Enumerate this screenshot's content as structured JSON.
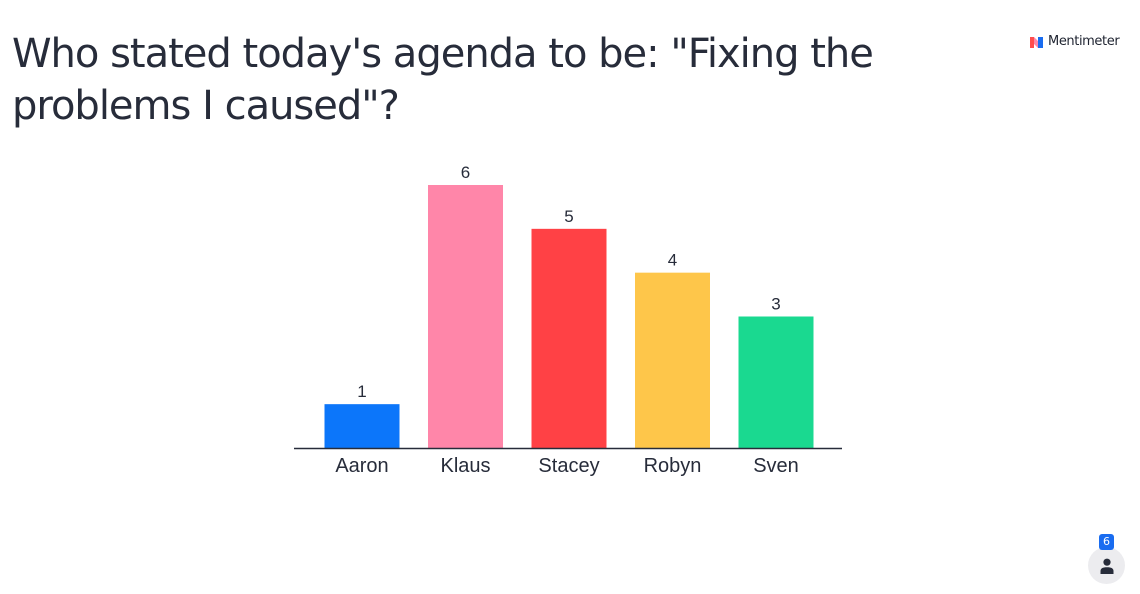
{
  "slide": {
    "question": "Who stated today's agenda to be: \"Fixing the problems I caused\"?"
  },
  "brand": {
    "name": "Mentimeter",
    "logo_icon": "mentimeter-logo-icon",
    "colors": {
      "logo_red": "#ff4d4d",
      "logo_blue": "#196cf0"
    }
  },
  "participants": {
    "count": "6",
    "icon": "person-icon",
    "badge_color": "#196cf0"
  },
  "chart_data": {
    "type": "bar",
    "title": "",
    "categories": [
      "Aaron",
      "Klaus",
      "Stacey",
      "Robyn",
      "Sven"
    ],
    "values": [
      1,
      6,
      5,
      4,
      3
    ],
    "data_labels": [
      "1",
      "6",
      "5",
      "4",
      "3"
    ],
    "colors": [
      "#0c76fa",
      "#ff86a9",
      "#ff4145",
      "#fec64a",
      "#1ad990"
    ],
    "axis_color": "#272c3a",
    "ylim": [
      0,
      6
    ],
    "grid": false,
    "legend": "none"
  }
}
